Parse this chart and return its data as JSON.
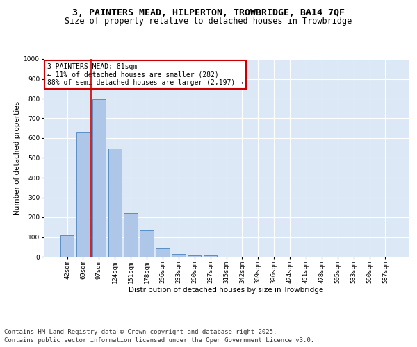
{
  "title_line1": "3, PAINTERS MEAD, HILPERTON, TROWBRIDGE, BA14 7QF",
  "title_line2": "Size of property relative to detached houses in Trowbridge",
  "xlabel": "Distribution of detached houses by size in Trowbridge",
  "ylabel": "Number of detached properties",
  "categories": [
    "42sqm",
    "69sqm",
    "97sqm",
    "124sqm",
    "151sqm",
    "178sqm",
    "206sqm",
    "233sqm",
    "260sqm",
    "287sqm",
    "315sqm",
    "342sqm",
    "369sqm",
    "396sqm",
    "424sqm",
    "451sqm",
    "478sqm",
    "505sqm",
    "533sqm",
    "560sqm",
    "587sqm"
  ],
  "values": [
    110,
    630,
    795,
    548,
    220,
    135,
    42,
    15,
    8,
    7,
    0,
    0,
    0,
    0,
    0,
    0,
    0,
    0,
    0,
    0,
    0
  ],
  "bar_color": "#aec6e8",
  "bar_edge_color": "#5a8fc4",
  "vline_color": "#cc0000",
  "annotation_text": "3 PAINTERS MEAD: 81sqm\n← 11% of detached houses are smaller (282)\n88% of semi-detached houses are larger (2,197) →",
  "annotation_box_color": "#cc0000",
  "annotation_bg": "#ffffff",
  "ylim": [
    0,
    1000
  ],
  "yticks": [
    0,
    100,
    200,
    300,
    400,
    500,
    600,
    700,
    800,
    900,
    1000
  ],
  "background_color": "#dce8f5",
  "grid_color": "#ffffff",
  "footer_line1": "Contains HM Land Registry data © Crown copyright and database right 2025.",
  "footer_line2": "Contains public sector information licensed under the Open Government Licence v3.0.",
  "title_fontsize": 9.5,
  "subtitle_fontsize": 8.5,
  "axis_label_fontsize": 7.5,
  "tick_fontsize": 6.5,
  "annotation_fontsize": 7,
  "footer_fontsize": 6.5
}
